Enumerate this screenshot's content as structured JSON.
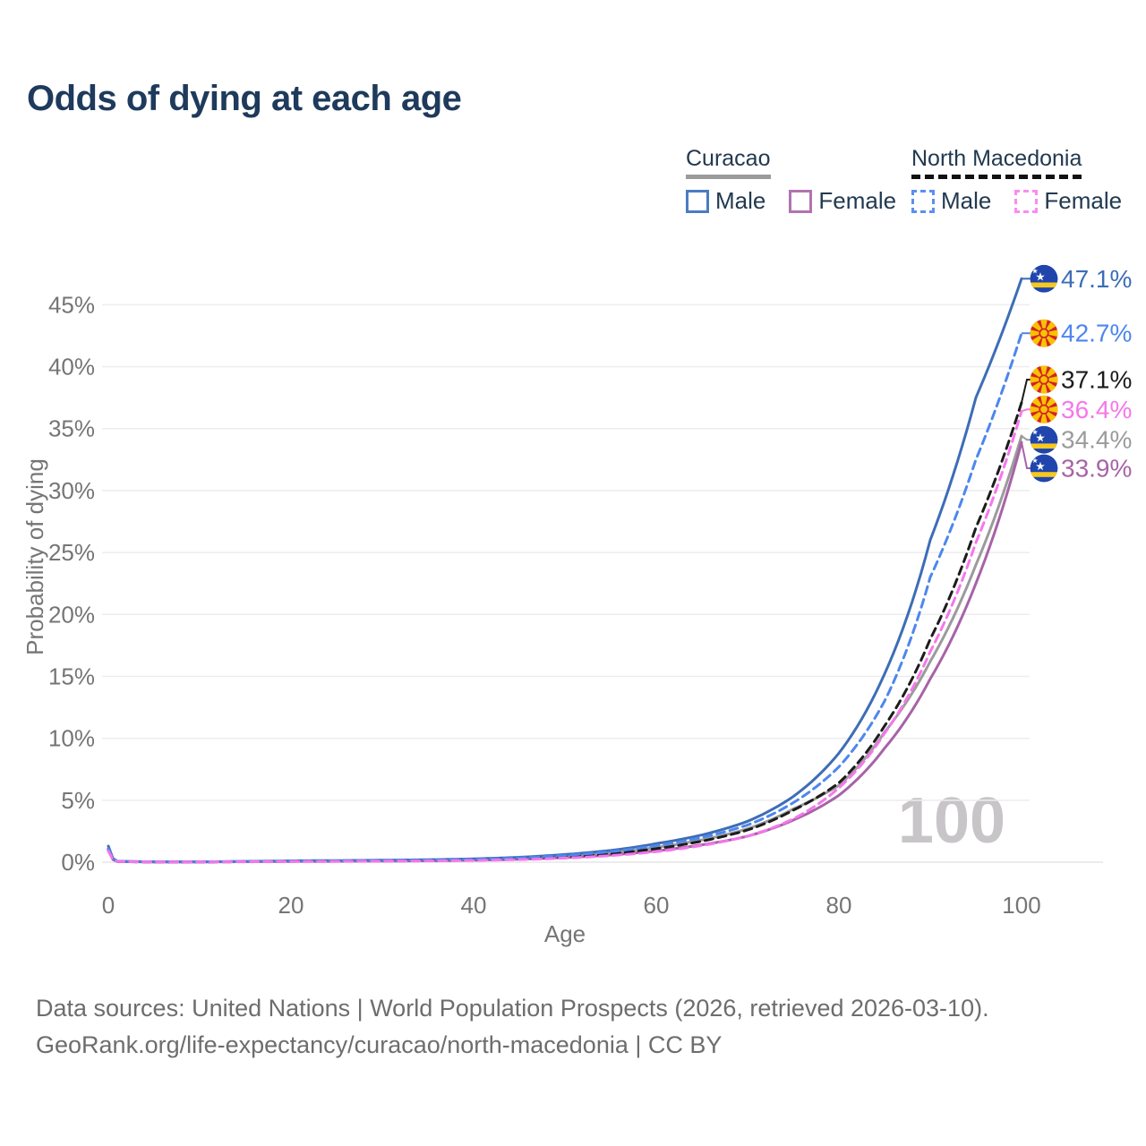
{
  "header": {
    "title": "Odds of dying at each age"
  },
  "legend": {
    "groups": [
      {
        "label": "Curacao",
        "underline": "solid",
        "underline_color": "#9b9b9b",
        "items": [
          {
            "label": "Male",
            "color": "#4a7cc2",
            "dash": false
          },
          {
            "label": "Female",
            "color": "#b173b1",
            "dash": false
          }
        ]
      },
      {
        "label": "North Macedonia",
        "underline": "dashed",
        "underline_color": "#111111",
        "items": [
          {
            "label": "Male",
            "color": "#5b8ff2",
            "dash": true
          },
          {
            "label": "Female",
            "color": "#fb8bf3",
            "dash": true
          }
        ]
      }
    ]
  },
  "chart_data": {
    "type": "line",
    "title": "Odds of dying at each age",
    "xlabel": "Age",
    "ylabel": "Probability of dying",
    "xlim": [
      0,
      100
    ],
    "ylim": [
      0,
      47.5
    ],
    "x_ticks": [
      0,
      20,
      40,
      60,
      80,
      100
    ],
    "y_ticks": [
      {
        "value": 0,
        "label": "0%"
      },
      {
        "value": 5,
        "label": "5%"
      },
      {
        "value": 10,
        "label": "10%"
      },
      {
        "value": 15,
        "label": "15%"
      },
      {
        "value": 20,
        "label": "20%"
      },
      {
        "value": 25,
        "label": "25%"
      },
      {
        "value": 30,
        "label": "30%"
      },
      {
        "value": 35,
        "label": "35%"
      },
      {
        "value": 40,
        "label": "40%"
      },
      {
        "value": 45,
        "label": "45%"
      }
    ],
    "grid": "horizontal",
    "legend_position": "top-right",
    "watermark": "100",
    "draw_order": [
      "cur_total",
      "cur_female",
      "cur_male",
      "nm_total",
      "nm_male",
      "nm_female"
    ],
    "series": [
      {
        "id": "cur_male",
        "name": "Curacao Male",
        "color": "#3d6db6",
        "dash": false,
        "flag": "cw",
        "end_label": "47.1%",
        "end_value": 47.1,
        "label_pct": 47.1,
        "points": [
          [
            0,
            1.3
          ],
          [
            1,
            0.07
          ],
          [
            5,
            0.03
          ],
          [
            10,
            0.03
          ],
          [
            15,
            0.06
          ],
          [
            20,
            0.11
          ],
          [
            25,
            0.13
          ],
          [
            30,
            0.16
          ],
          [
            35,
            0.2
          ],
          [
            40,
            0.27
          ],
          [
            45,
            0.4
          ],
          [
            50,
            0.62
          ],
          [
            55,
            0.95
          ],
          [
            60,
            1.5
          ],
          [
            65,
            2.2
          ],
          [
            70,
            3.3
          ],
          [
            75,
            5.3
          ],
          [
            80,
            8.8
          ],
          [
            85,
            15.2
          ],
          [
            90,
            26.0
          ],
          [
            95,
            37.5
          ],
          [
            100,
            47.1
          ]
        ]
      },
      {
        "id": "nm_male",
        "name": "North Macedonia Male",
        "color": "#4d86ef",
        "dash": true,
        "flag": "mk",
        "end_label": "42.7%",
        "end_value": 42.7,
        "label_pct": 42.7,
        "points": [
          [
            0,
            1.1
          ],
          [
            1,
            0.06
          ],
          [
            5,
            0.03
          ],
          [
            10,
            0.03
          ],
          [
            15,
            0.05
          ],
          [
            20,
            0.09
          ],
          [
            25,
            0.11
          ],
          [
            30,
            0.13
          ],
          [
            35,
            0.17
          ],
          [
            40,
            0.23
          ],
          [
            45,
            0.35
          ],
          [
            50,
            0.55
          ],
          [
            55,
            0.85
          ],
          [
            60,
            1.35
          ],
          [
            65,
            2.0
          ],
          [
            70,
            3.0
          ],
          [
            75,
            4.8
          ],
          [
            80,
            7.7
          ],
          [
            85,
            13.0
          ],
          [
            90,
            23.0
          ],
          [
            95,
            32.5
          ],
          [
            100,
            42.7
          ]
        ]
      },
      {
        "id": "nm_total",
        "name": "North Macedonia",
        "color": "#1c1c1c",
        "dash": true,
        "flag": "mk",
        "end_label": "37.1%",
        "end_value": 37.1,
        "label_pct": 38.95,
        "points": [
          [
            0,
            1.0
          ],
          [
            1,
            0.05
          ],
          [
            5,
            0.02
          ],
          [
            10,
            0.02
          ],
          [
            15,
            0.04
          ],
          [
            20,
            0.07
          ],
          [
            25,
            0.08
          ],
          [
            30,
            0.1
          ],
          [
            35,
            0.13
          ],
          [
            40,
            0.18
          ],
          [
            45,
            0.27
          ],
          [
            50,
            0.42
          ],
          [
            55,
            0.68
          ],
          [
            60,
            1.1
          ],
          [
            65,
            1.7
          ],
          [
            70,
            2.6
          ],
          [
            75,
            4.2
          ],
          [
            80,
            6.4
          ],
          [
            85,
            11.0
          ],
          [
            90,
            18.0
          ],
          [
            95,
            27.0
          ],
          [
            100,
            37.1
          ]
        ]
      },
      {
        "id": "nm_female",
        "name": "North Macedonia Female",
        "color": "#f676ec",
        "dash": true,
        "flag": "mk",
        "end_label": "36.4%",
        "end_value": 36.4,
        "label_pct": 36.55,
        "points": [
          [
            0,
            0.9
          ],
          [
            1,
            0.05
          ],
          [
            5,
            0.02
          ],
          [
            10,
            0.02
          ],
          [
            15,
            0.03
          ],
          [
            20,
            0.05
          ],
          [
            25,
            0.06
          ],
          [
            30,
            0.08
          ],
          [
            35,
            0.1
          ],
          [
            40,
            0.14
          ],
          [
            45,
            0.21
          ],
          [
            50,
            0.33
          ],
          [
            55,
            0.53
          ],
          [
            60,
            0.85
          ],
          [
            65,
            1.35
          ],
          [
            70,
            2.1
          ],
          [
            75,
            3.5
          ],
          [
            80,
            6.0
          ],
          [
            85,
            10.4
          ],
          [
            90,
            17.0
          ],
          [
            95,
            25.8
          ],
          [
            100,
            36.4
          ]
        ]
      },
      {
        "id": "cur_total",
        "name": "Curacao",
        "color": "#9b9b9b",
        "dash": false,
        "flag": "cw",
        "end_label": "34.4%",
        "end_value": 34.4,
        "label_pct": 34.1,
        "points": [
          [
            0,
            1.1
          ],
          [
            1,
            0.06
          ],
          [
            5,
            0.03
          ],
          [
            10,
            0.03
          ],
          [
            15,
            0.05
          ],
          [
            20,
            0.08
          ],
          [
            25,
            0.1
          ],
          [
            30,
            0.12
          ],
          [
            35,
            0.15
          ],
          [
            40,
            0.21
          ],
          [
            45,
            0.31
          ],
          [
            50,
            0.48
          ],
          [
            55,
            0.75
          ],
          [
            60,
            1.2
          ],
          [
            65,
            1.8
          ],
          [
            70,
            2.7
          ],
          [
            75,
            4.3
          ],
          [
            80,
            6.2
          ],
          [
            85,
            10.5
          ],
          [
            90,
            16.2
          ],
          [
            95,
            24.0
          ],
          [
            100,
            34.4
          ]
        ]
      },
      {
        "id": "cur_female",
        "name": "Curacao Female",
        "color": "#a763a7",
        "dash": false,
        "flag": "cw",
        "end_label": "33.9%",
        "end_value": 33.9,
        "label_pct": 31.8,
        "points": [
          [
            0,
            0.95
          ],
          [
            1,
            0.05
          ],
          [
            5,
            0.02
          ],
          [
            10,
            0.02
          ],
          [
            15,
            0.04
          ],
          [
            20,
            0.06
          ],
          [
            25,
            0.07
          ],
          [
            30,
            0.09
          ],
          [
            35,
            0.11
          ],
          [
            40,
            0.16
          ],
          [
            45,
            0.24
          ],
          [
            50,
            0.37
          ],
          [
            55,
            0.58
          ],
          [
            60,
            0.92
          ],
          [
            65,
            1.4
          ],
          [
            70,
            2.1
          ],
          [
            75,
            3.4
          ],
          [
            80,
            5.4
          ],
          [
            85,
            9.2
          ],
          [
            90,
            14.8
          ],
          [
            95,
            22.5
          ],
          [
            100,
            33.9
          ]
        ]
      }
    ],
    "colors": {
      "grid": "#ededed",
      "baseline": "#e6e6e6",
      "axis_text": "#757575",
      "watermark": "#c8c5c8"
    }
  },
  "footer": {
    "line1": "Data sources: United Nations | World Population Prospects (2026, retrieved 2026-03-10).",
    "line2": "GeoRank.org/life-expectancy/curacao/north-macedonia | CC BY"
  }
}
